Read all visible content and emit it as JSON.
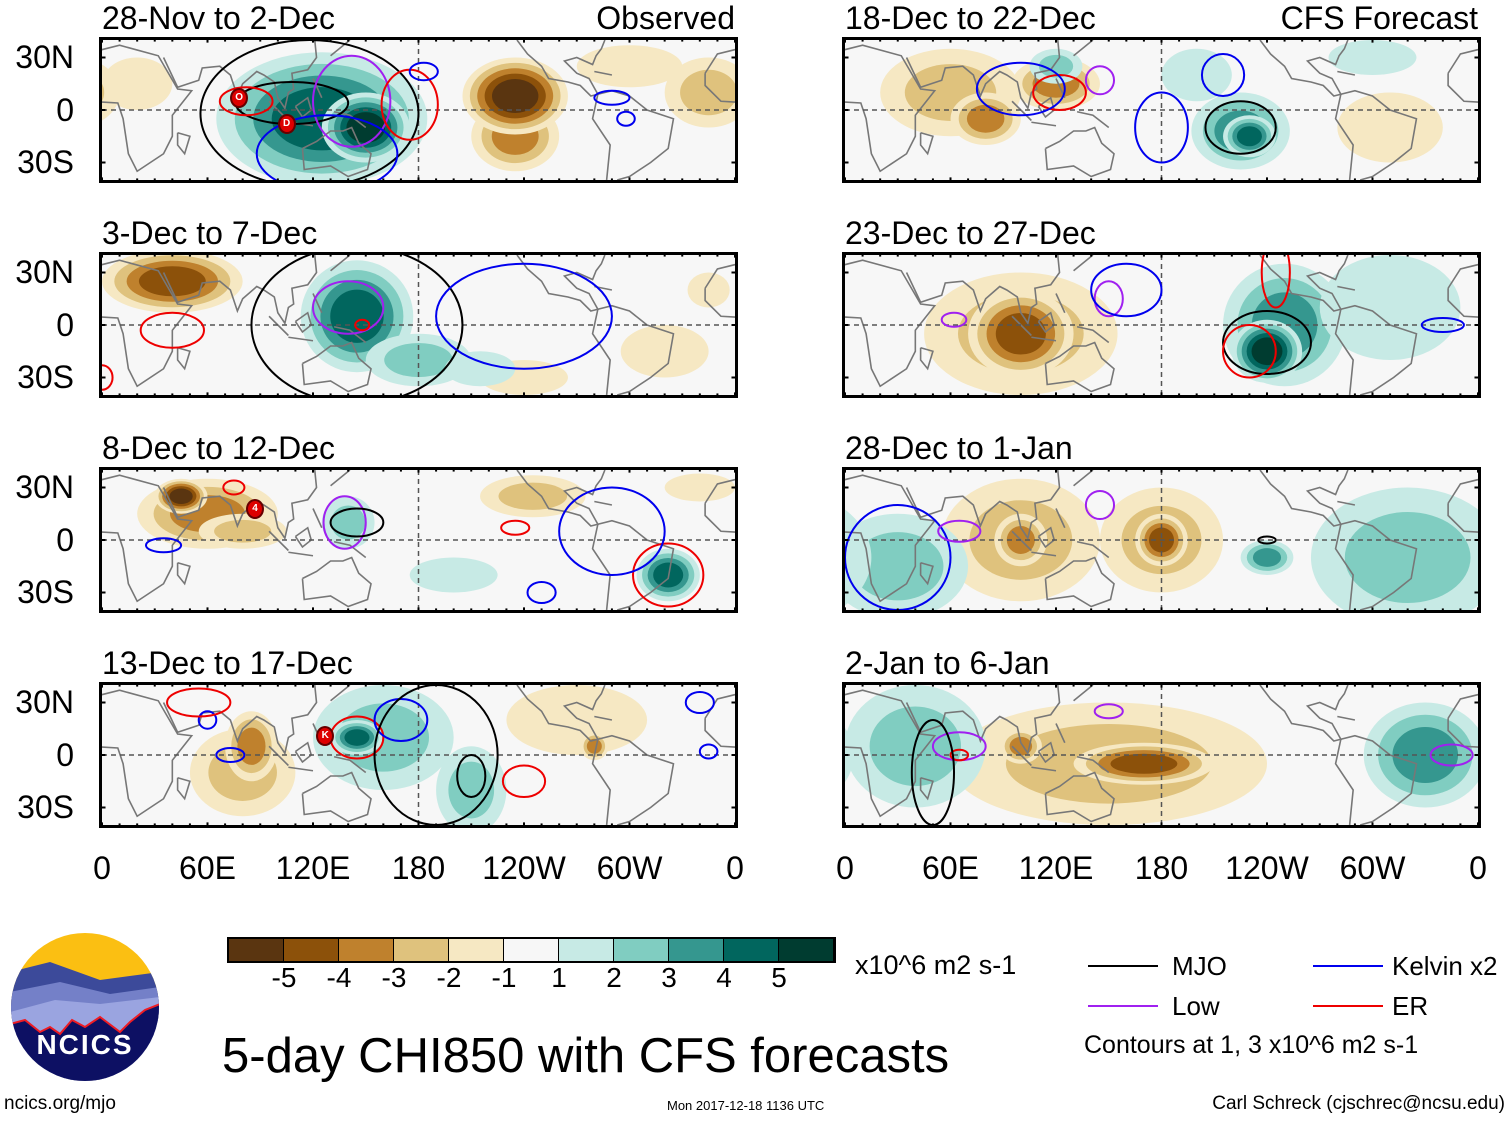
{
  "panels": [
    {
      "title": "28-Nov to 2-Dec",
      "label": "Observed",
      "anomalies": [
        [
          20,
          15,
          20,
          15,
          -1
        ],
        [
          345,
          10,
          25,
          20,
          -2
        ],
        [
          125,
          -5,
          60,
          38,
          4
        ],
        [
          150,
          -10,
          25,
          20,
          5
        ],
        [
          235,
          -15,
          25,
          20,
          -3
        ],
        [
          235,
          8,
          30,
          22,
          -5
        ],
        [
          300,
          25,
          30,
          12,
          -1
        ]
      ],
      "contours": [
        [
          "MJO",
          118,
          -2,
          62,
          42
        ],
        [
          "MJO",
          108,
          4,
          32,
          12
        ],
        [
          "Low",
          142,
          5,
          22,
          26
        ],
        [
          "Kelvin",
          128,
          -25,
          40,
          22
        ],
        [
          "ER",
          82,
          5,
          15,
          8
        ],
        [
          "ER",
          175,
          3,
          16,
          20
        ],
        [
          "Kelvin",
          183,
          22,
          8,
          5
        ],
        [
          "Kelvin",
          290,
          7,
          10,
          4
        ],
        [
          "Kelvin",
          298,
          -5,
          5,
          4
        ]
      ],
      "storms": [
        [
          "O",
          78,
          7
        ],
        [
          "D",
          105,
          -8
        ]
      ]
    },
    {
      "title": "3-Dec to 7-Dec",
      "label": "",
      "anomalies": [
        [
          40,
          25,
          40,
          18,
          -4
        ],
        [
          145,
          5,
          32,
          32,
          4
        ],
        [
          180,
          -20,
          30,
          15,
          2
        ],
        [
          320,
          -15,
          25,
          15,
          -1
        ],
        [
          240,
          -30,
          25,
          10,
          -1
        ],
        [
          215,
          -25,
          20,
          10,
          1
        ],
        [
          345,
          20,
          12,
          10,
          -1
        ]
      ],
      "contours": [
        [
          "MJO",
          145,
          0,
          60,
          45
        ],
        [
          "ER",
          40,
          -3,
          18,
          10
        ],
        [
          "Kelvin",
          240,
          5,
          50,
          30
        ],
        [
          "Low",
          140,
          10,
          20,
          15
        ],
        [
          "ER",
          0,
          -30,
          6,
          7
        ],
        [
          "ER",
          148,
          0,
          4,
          3
        ]
      ],
      "storms": []
    },
    {
      "title": "8-Dec to 12-Dec",
      "label": "",
      "anomalies": [
        [
          60,
          15,
          40,
          20,
          -3
        ],
        [
          45,
          25,
          15,
          10,
          -5
        ],
        [
          80,
          5,
          25,
          10,
          -2
        ],
        [
          140,
          10,
          15,
          15,
          2
        ],
        [
          245,
          25,
          30,
          12,
          -2
        ],
        [
          322,
          -20,
          18,
          15,
          4
        ],
        [
          200,
          -20,
          25,
          10,
          1
        ],
        [
          340,
          30,
          20,
          8,
          -1
        ]
      ],
      "contours": [
        [
          "ER",
          322,
          -20,
          20,
          18
        ],
        [
          "Kelvin",
          290,
          5,
          30,
          25
        ],
        [
          "Kelvin",
          250,
          -30,
          8,
          6
        ],
        [
          "ER",
          235,
          7,
          8,
          4
        ],
        [
          "Low",
          138,
          10,
          12,
          15
        ],
        [
          "MJO",
          145,
          10,
          15,
          8
        ],
        [
          "Kelvin",
          35,
          -3,
          10,
          4
        ],
        [
          "ER",
          75,
          30,
          6,
          4
        ]
      ],
      "storms": [
        [
          "4",
          87,
          18
        ]
      ]
    },
    {
      "title": "13-Dec to 17-Dec",
      "label": "",
      "anomalies": [
        [
          80,
          -10,
          30,
          25,
          -2
        ],
        [
          85,
          5,
          15,
          20,
          -3
        ],
        [
          160,
          10,
          40,
          30,
          2
        ],
        [
          145,
          10,
          15,
          10,
          4
        ],
        [
          210,
          -20,
          20,
          25,
          2
        ],
        [
          270,
          20,
          40,
          20,
          -1
        ],
        [
          280,
          5,
          8,
          8,
          -3
        ]
      ],
      "contours": [
        [
          "ER",
          145,
          10,
          15,
          12
        ],
        [
          "Kelvin",
          170,
          20,
          15,
          12
        ],
        [
          "MJO",
          190,
          0,
          35,
          40
        ],
        [
          "MJO",
          210,
          -12,
          8,
          12
        ],
        [
          "ER",
          240,
          -15,
          12,
          9
        ],
        [
          "Kelvin",
          340,
          30,
          8,
          6
        ],
        [
          "Kelvin",
          345,
          2,
          5,
          4
        ],
        [
          "Kelvin",
          73,
          0,
          8,
          4
        ],
        [
          "Kelvin",
          60,
          20,
          5,
          5
        ],
        [
          "ER",
          55,
          30,
          18,
          8
        ]
      ],
      "storms": [
        [
          "K",
          127,
          11
        ]
      ]
    },
    {
      "title": "18-Dec to 22-Dec",
      "label": "CFS Forecast",
      "anomalies": [
        [
          60,
          10,
          40,
          25,
          -2
        ],
        [
          120,
          15,
          25,
          15,
          -3
        ],
        [
          80,
          -5,
          20,
          15,
          -3
        ],
        [
          120,
          25,
          15,
          10,
          2
        ],
        [
          200,
          20,
          20,
          15,
          1
        ],
        [
          225,
          -12,
          28,
          22,
          3
        ],
        [
          230,
          -15,
          15,
          12,
          4
        ],
        [
          300,
          30,
          25,
          10,
          1
        ],
        [
          310,
          -10,
          30,
          20,
          -1
        ]
      ],
      "contours": [
        [
          "MJO",
          225,
          -10,
          20,
          15
        ],
        [
          "Kelvin",
          180,
          -10,
          15,
          20
        ],
        [
          "Kelvin",
          215,
          20,
          12,
          12
        ],
        [
          "Low",
          145,
          17,
          8,
          8
        ],
        [
          "ER",
          122,
          10,
          15,
          10
        ],
        [
          "Kelvin",
          100,
          12,
          25,
          15
        ]
      ],
      "storms": []
    },
    {
      "title": "23-Dec to 27-Dec",
      "label": "",
      "anomalies": [
        [
          100,
          -5,
          55,
          35,
          -2
        ],
        [
          100,
          -5,
          30,
          25,
          -4
        ],
        [
          250,
          0,
          35,
          35,
          3
        ],
        [
          240,
          -15,
          20,
          18,
          5
        ],
        [
          310,
          10,
          40,
          30,
          1
        ]
      ],
      "contours": [
        [
          "MJO",
          240,
          -10,
          25,
          18
        ],
        [
          "ER",
          230,
          -15,
          15,
          15
        ],
        [
          "ER",
          245,
          30,
          8,
          20
        ],
        [
          "Kelvin",
          340,
          0,
          12,
          4
        ],
        [
          "Low",
          150,
          15,
          8,
          10
        ],
        [
          "Low",
          62,
          3,
          7,
          4
        ],
        [
          "Kelvin",
          160,
          20,
          20,
          15
        ]
      ],
      "storms": []
    },
    {
      "title": "28-Dec to 1-Jan",
      "label": "",
      "anomalies": [
        [
          100,
          0,
          45,
          35,
          -2
        ],
        [
          100,
          0,
          15,
          15,
          -3
        ],
        [
          180,
          0,
          35,
          30,
          -2
        ],
        [
          180,
          0,
          15,
          15,
          -4
        ],
        [
          30,
          -15,
          40,
          30,
          2
        ],
        [
          320,
          -10,
          55,
          40,
          2
        ],
        [
          240,
          -10,
          15,
          10,
          3
        ]
      ],
      "contours": [
        [
          "Kelvin",
          30,
          -10,
          30,
          30
        ],
        [
          "Low",
          65,
          5,
          12,
          6
        ],
        [
          "Low",
          145,
          20,
          8,
          8
        ],
        [
          "MJO",
          240,
          0,
          5,
          2
        ]
      ],
      "storms": []
    },
    {
      "title": "2-Jan to 6-Jan",
      "label": "",
      "anomalies": [
        [
          150,
          -5,
          90,
          35,
          -2
        ],
        [
          170,
          -5,
          40,
          12,
          -4
        ],
        [
          100,
          5,
          12,
          10,
          -3
        ],
        [
          40,
          5,
          40,
          35,
          2
        ],
        [
          330,
          0,
          35,
          30,
          3
        ]
      ],
      "contours": [
        [
          "Low",
          65,
          5,
          15,
          8
        ],
        [
          "ER",
          65,
          0,
          5,
          3
        ],
        [
          "Low",
          150,
          25,
          8,
          4
        ],
        [
          "Low",
          345,
          0,
          12,
          6
        ],
        [
          "MJO",
          50,
          -10,
          12,
          30
        ]
      ],
      "storms": []
    }
  ],
  "lat_labels": [
    "30N",
    "0",
    "30S"
  ],
  "lon_labels": [
    "0",
    "60E",
    "120E",
    "180",
    "120W",
    "60W",
    "0"
  ],
  "colorbar": {
    "labels": [
      "-5",
      "-4",
      "-3",
      "-2",
      "-1",
      "1",
      "2",
      "3",
      "4",
      "5"
    ],
    "colors": [
      "#5a3510",
      "#8c510a",
      "#bf812d",
      "#dfc27d",
      "#f6e8c3",
      "#f7f7f7",
      "#c7eae5",
      "#80cdc1",
      "#35978f",
      "#01665e",
      "#003c30"
    ],
    "units": "x10^6 m2 s-1"
  },
  "legend": {
    "mjo": "MJO",
    "kelvin": "Kelvin x2",
    "low": "Low",
    "er": "ER",
    "note": "Contours at 1, 3 x10^6 m2 s-1"
  },
  "contour_colors": {
    "MJO": "#000000",
    "Kelvin": "#0000ee",
    "Low": "#a020f0",
    "ER": "#ee0000"
  },
  "title": "5-day CHI850 with CFS forecasts",
  "logo": {
    "text": "NCICS"
  },
  "url": "ncics.org/mjo",
  "timestamp": "Mon 2017-12-18 1136 UTC",
  "credit": "Carl Schreck (cjschrec@ncsu.edu)"
}
